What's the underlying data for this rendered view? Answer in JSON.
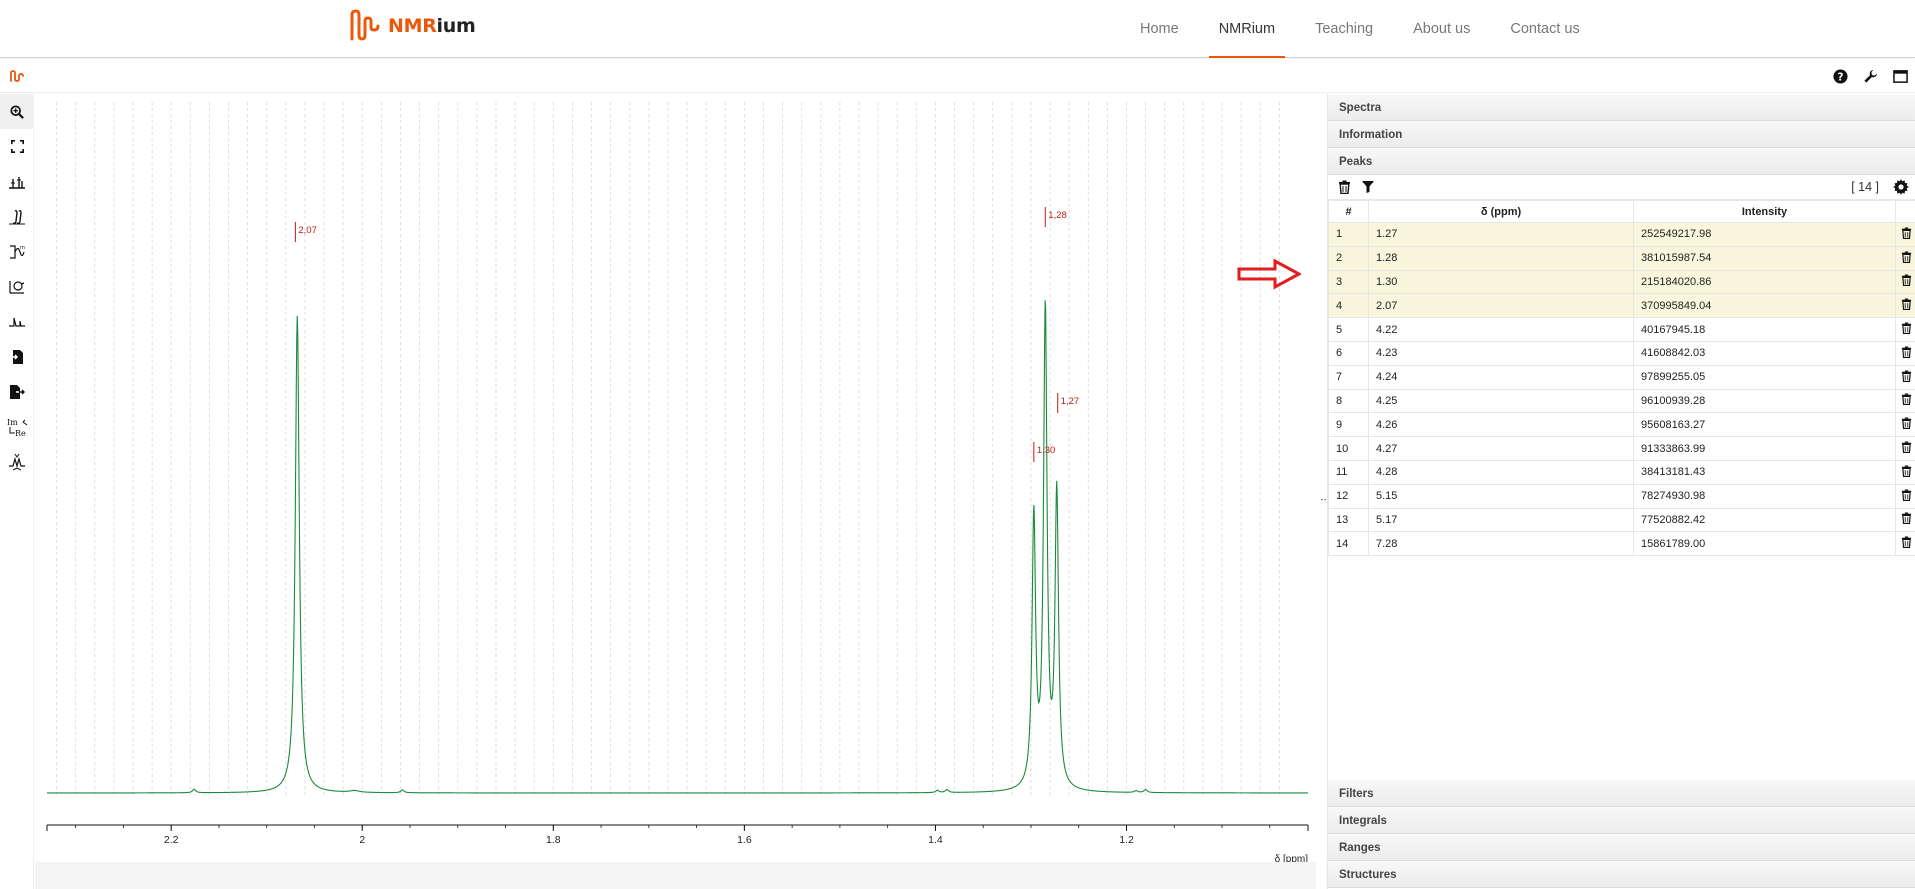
{
  "site": {
    "logo_prefix": "NMR",
    "logo_suffix": "ium",
    "nav": [
      {
        "label": "Home",
        "active": false
      },
      {
        "label": "NMRium",
        "active": true
      },
      {
        "label": "Teaching",
        "active": false
      },
      {
        "label": "About us",
        "active": false
      },
      {
        "label": "Contact us",
        "active": false
      }
    ]
  },
  "colors": {
    "accent": "#ea580c",
    "spectrum_line": "#1a8a3c",
    "peak_marker": "#b91c1c",
    "highlight_row": "#f8f6dc",
    "arrow": "#e11d1d"
  },
  "app_header_icons": [
    "help-icon",
    "wrench-icon",
    "fullscreen-icon"
  ],
  "left_toolbar": [
    "zoom-icon",
    "full-zoom-icon",
    "peak-picking-icon",
    "integral-icon",
    "zero-filling-icon",
    "phase-correction-icon",
    "baseline-correction-icon",
    "import-icon",
    "export-icon",
    "real-imaginary-icon",
    "multiplet-icon"
  ],
  "panels": {
    "top": [
      "Spectra",
      "Information",
      "Peaks"
    ],
    "bottom": [
      "Filters",
      "Integrals",
      "Ranges",
      "Structures"
    ]
  },
  "peaks": {
    "count_label": "[ 14 ]",
    "headers": {
      "index": "#",
      "delta": "δ (ppm)",
      "intensity": "Intensity"
    },
    "rows": [
      {
        "i": "1",
        "delta": "1.27",
        "intensity": "252549217.98",
        "highlight": true
      },
      {
        "i": "2",
        "delta": "1.28",
        "intensity": "381015987.54",
        "highlight": true
      },
      {
        "i": "3",
        "delta": "1.30",
        "intensity": "215184020.86",
        "highlight": true
      },
      {
        "i": "4",
        "delta": "2.07",
        "intensity": "370995849.04",
        "highlight": true
      },
      {
        "i": "5",
        "delta": "4.22",
        "intensity": "40167945.18",
        "highlight": false
      },
      {
        "i": "6",
        "delta": "4.23",
        "intensity": "41608842.03",
        "highlight": false
      },
      {
        "i": "7",
        "delta": "4.24",
        "intensity": "97899255.05",
        "highlight": false
      },
      {
        "i": "8",
        "delta": "4.25",
        "intensity": "96100939.28",
        "highlight": false
      },
      {
        "i": "9",
        "delta": "4.26",
        "intensity": "95608163.27",
        "highlight": false
      },
      {
        "i": "10",
        "delta": "4.27",
        "intensity": "91333863.99",
        "highlight": false
      },
      {
        "i": "11",
        "delta": "4.28",
        "intensity": "38413181.43",
        "highlight": false
      },
      {
        "i": "12",
        "delta": "5.15",
        "intensity": "78274930.98",
        "highlight": false
      },
      {
        "i": "13",
        "delta": "5.17",
        "intensity": "77520882.42",
        "highlight": false
      },
      {
        "i": "14",
        "delta": "7.28",
        "intensity": "15861789.00",
        "highlight": false
      }
    ]
  },
  "chart_data": {
    "type": "line",
    "xlabel": "δ [ppm]",
    "xlim": [
      2.33,
      1.01
    ],
    "x_reversed": true,
    "ticks": [
      "2.2",
      "2",
      "1.8",
      "1.6",
      "1.4",
      "1.2"
    ],
    "tick_values": [
      2.2,
      2.0,
      1.8,
      1.6,
      1.4,
      1.2
    ],
    "grid": true,
    "peak_labels": [
      {
        "label": "2,07",
        "x": 2.07
      },
      {
        "label": "1,28",
        "x": 1.285
      },
      {
        "label": "1,27",
        "x": 1.272
      },
      {
        "label": "1,30",
        "x": 1.297
      }
    ],
    "series": [
      {
        "peaks": [
          {
            "x": 2.068,
            "height": 0.81,
            "width": 0.0025
          },
          {
            "x": 1.297,
            "height": 0.46,
            "width": 0.0022
          },
          {
            "x": 1.285,
            "height": 0.81,
            "width": 0.0022
          },
          {
            "x": 1.273,
            "height": 0.5,
            "width": 0.0022
          },
          {
            "x": 2.176,
            "height": 0.006,
            "width": 0.002
          },
          {
            "x": 1.958,
            "height": 0.005,
            "width": 0.002
          },
          {
            "x": 2.008,
            "height": 0.003,
            "width": 0.006
          },
          {
            "x": 1.398,
            "height": 0.004,
            "width": 0.002
          },
          {
            "x": 1.388,
            "height": 0.005,
            "width": 0.002
          },
          {
            "x": 1.18,
            "height": 0.005,
            "width": 0.002
          },
          {
            "x": 1.19,
            "height": 0.003,
            "width": 0.002
          }
        ]
      }
    ]
  }
}
